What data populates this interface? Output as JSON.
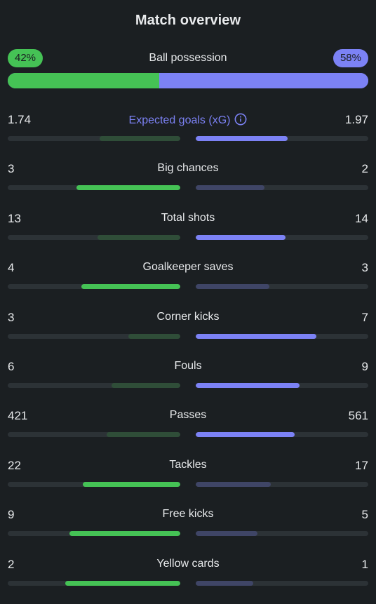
{
  "title": "Match overview",
  "possession": {
    "label": "Ball possession",
    "home_label": "42%",
    "away_label": "58%",
    "home_value": 42,
    "away_value": 58
  },
  "colors": {
    "home": "#45c255",
    "away": "#7c82f5",
    "background": "#1b1f22"
  },
  "stats": [
    {
      "label": "Expected goals (xG)",
      "home": "1.74",
      "away": "1.97",
      "home_num": 1.74,
      "away_num": 1.97,
      "accent": true,
      "info_icon": "info-icon"
    },
    {
      "label": "Big chances",
      "home": "3",
      "away": "2",
      "home_num": 3,
      "away_num": 2
    },
    {
      "label": "Total shots",
      "home": "13",
      "away": "14",
      "home_num": 13,
      "away_num": 14
    },
    {
      "label": "Goalkeeper saves",
      "home": "4",
      "away": "3",
      "home_num": 4,
      "away_num": 3
    },
    {
      "label": "Corner kicks",
      "home": "3",
      "away": "7",
      "home_num": 3,
      "away_num": 7
    },
    {
      "label": "Fouls",
      "home": "6",
      "away": "9",
      "home_num": 6,
      "away_num": 9
    },
    {
      "label": "Passes",
      "home": "421",
      "away": "561",
      "home_num": 421,
      "away_num": 561
    },
    {
      "label": "Tackles",
      "home": "22",
      "away": "17",
      "home_num": 22,
      "away_num": 17
    },
    {
      "label": "Free kicks",
      "home": "9",
      "away": "5",
      "home_num": 9,
      "away_num": 5
    },
    {
      "label": "Yellow cards",
      "home": "2",
      "away": "1",
      "home_num": 2,
      "away_num": 1
    }
  ]
}
